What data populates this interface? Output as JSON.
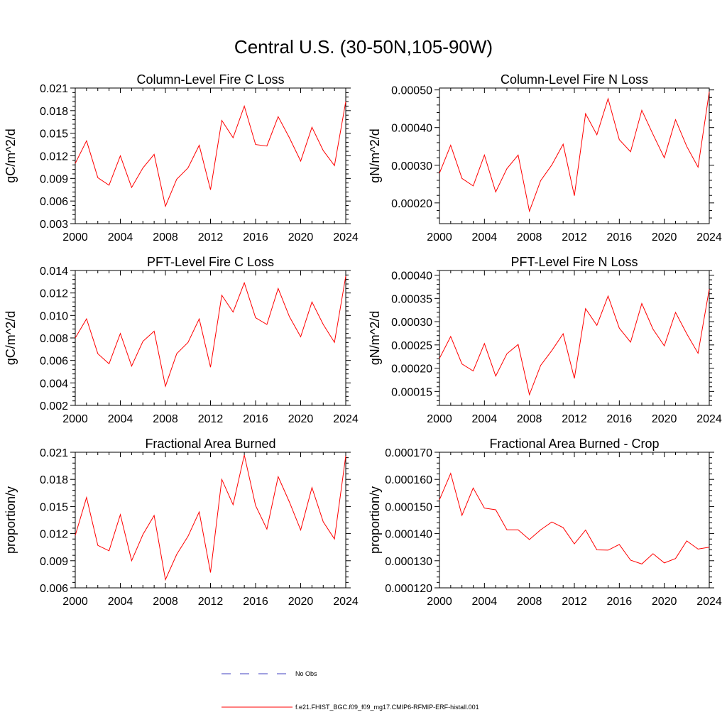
{
  "title": "Central U.S. (30-50N,105-90W)",
  "colors": {
    "model": "#ff0000",
    "obs": "#4040c0",
    "axis": "#000000",
    "background": "#ffffff"
  },
  "legend": {
    "placement": "bottom-center",
    "entries": [
      {
        "label": "No Obs",
        "style": "dashed",
        "color": "#4040c0"
      },
      {
        "label": "f.e21.FHIST_BGC.f09_f09_mg17.CMIP6-RFMIP-ERF-histall.001",
        "style": "solid",
        "color": "#ff0000"
      }
    ]
  },
  "chart_data": [
    {
      "type": "line",
      "title": "Column-Level Fire C Loss",
      "xlabel": "",
      "ylabel": "gC/m^2/d",
      "xlim": [
        2000,
        2024
      ],
      "ylim": [
        0.003,
        0.021
      ],
      "xticks": [
        2000,
        2004,
        2008,
        2012,
        2016,
        2020,
        2024
      ],
      "xtick_labels": [
        "2000",
        "2004",
        "2008",
        "2012",
        "2016",
        "2020",
        "2024"
      ],
      "yticks": [
        0.003,
        0.006,
        0.009,
        0.012,
        0.015,
        0.018,
        0.021
      ],
      "ytick_labels": [
        "0.003",
        "0.006",
        "0.009",
        "0.012",
        "0.015",
        "0.018",
        "0.021"
      ],
      "x": [
        2000,
        2001,
        2002,
        2003,
        2004,
        2005,
        2006,
        2007,
        2008,
        2009,
        2010,
        2011,
        2012,
        2013,
        2014,
        2015,
        2016,
        2017,
        2018,
        2019,
        2020,
        2021,
        2022,
        2023,
        2024
      ],
      "series": [
        {
          "name": "f.e21.FHIST_BGC.f09_f09_mg17.CMIP6-RFMIP-ERF-histall.001",
          "values": [
            0.011,
            0.014,
            0.0091,
            0.0081,
            0.012,
            0.0078,
            0.0104,
            0.0122,
            0.0053,
            0.0089,
            0.0104,
            0.0134,
            0.0075,
            0.0167,
            0.0144,
            0.0186,
            0.0135,
            0.0133,
            0.0172,
            0.0144,
            0.0113,
            0.0158,
            0.0127,
            0.0107,
            0.0192
          ]
        }
      ]
    },
    {
      "type": "line",
      "title": "Column-Level Fire N Loss",
      "xlabel": "",
      "ylabel": "gN/m^2/d",
      "xlim": [
        2000,
        2024
      ],
      "ylim": [
        0.000145,
        0.000505
      ],
      "xticks": [
        2000,
        2004,
        2008,
        2012,
        2016,
        2020,
        2024
      ],
      "xtick_labels": [
        "2000",
        "2004",
        "2008",
        "2012",
        "2016",
        "2020",
        "2024"
      ],
      "yticks": [
        0.0002,
        0.0003,
        0.0004,
        0.0005
      ],
      "ytick_labels": [
        "0.00020",
        "0.00030",
        "0.00040",
        "0.00050"
      ],
      "x": [
        2000,
        2001,
        2002,
        2003,
        2004,
        2005,
        2006,
        2007,
        2008,
        2009,
        2010,
        2011,
        2012,
        2013,
        2014,
        2015,
        2016,
        2017,
        2018,
        2019,
        2020,
        2021,
        2022,
        2023,
        2024
      ],
      "series": [
        {
          "name": "f.e21.FHIST_BGC.f09_f09_mg17.CMIP6-RFMIP-ERF-histall.001",
          "values": [
            0.000279,
            0.000353,
            0.000265,
            0.000245,
            0.000327,
            0.000229,
            0.000291,
            0.000327,
            0.000178,
            0.000259,
            0.000301,
            0.000356,
            0.000219,
            0.000437,
            0.000381,
            0.000477,
            0.000368,
            0.000336,
            0.000446,
            0.000382,
            0.00032,
            0.000421,
            0.00035,
            0.000295,
            0.000495
          ]
        }
      ]
    },
    {
      "type": "line",
      "title": "PFT-Level Fire C Loss",
      "xlabel": "",
      "ylabel": "gC/m^2/d",
      "xlim": [
        2000,
        2024
      ],
      "ylim": [
        0.002,
        0.014
      ],
      "xticks": [
        2000,
        2004,
        2008,
        2012,
        2016,
        2020,
        2024
      ],
      "xtick_labels": [
        "2000",
        "2004",
        "2008",
        "2012",
        "2016",
        "2020",
        "2024"
      ],
      "yticks": [
        0.002,
        0.004,
        0.006,
        0.008,
        0.01,
        0.012,
        0.014
      ],
      "ytick_labels": [
        "0.002",
        "0.004",
        "0.006",
        "0.008",
        "0.010",
        "0.012",
        "0.014"
      ],
      "x": [
        2000,
        2001,
        2002,
        2003,
        2004,
        2005,
        2006,
        2007,
        2008,
        2009,
        2010,
        2011,
        2012,
        2013,
        2014,
        2015,
        2016,
        2017,
        2018,
        2019,
        2020,
        2021,
        2022,
        2023,
        2024
      ],
      "series": [
        {
          "name": "f.e21.FHIST_BGC.f09_f09_mg17.CMIP6-RFMIP-ERF-histall.001",
          "values": [
            0.008,
            0.0097,
            0.0066,
            0.0057,
            0.0084,
            0.0055,
            0.0077,
            0.0086,
            0.0037,
            0.0066,
            0.0076,
            0.0097,
            0.0054,
            0.0118,
            0.0103,
            0.0129,
            0.0098,
            0.0092,
            0.0124,
            0.0099,
            0.0081,
            0.0112,
            0.0092,
            0.0076,
            0.0135
          ]
        }
      ]
    },
    {
      "type": "line",
      "title": "PFT-Level Fire N Loss",
      "xlabel": "",
      "ylabel": "gN/m^2/d",
      "xlim": [
        2000,
        2024
      ],
      "ylim": [
        0.00012,
        0.00041
      ],
      "xticks": [
        2000,
        2004,
        2008,
        2012,
        2016,
        2020,
        2024
      ],
      "xtick_labels": [
        "2000",
        "2004",
        "2008",
        "2012",
        "2016",
        "2020",
        "2024"
      ],
      "yticks": [
        0.00015,
        0.0002,
        0.00025,
        0.0003,
        0.00035,
        0.0004
      ],
      "ytick_labels": [
        "0.00015",
        "0.00020",
        "0.00025",
        "0.00030",
        "0.00035",
        "0.00040"
      ],
      "x": [
        2000,
        2001,
        2002,
        2003,
        2004,
        2005,
        2006,
        2007,
        2008,
        2009,
        2010,
        2011,
        2012,
        2013,
        2014,
        2015,
        2016,
        2017,
        2018,
        2019,
        2020,
        2021,
        2022,
        2023,
        2024
      ],
      "series": [
        {
          "name": "f.e21.FHIST_BGC.f09_f09_mg17.CMIP6-RFMIP-ERF-histall.001",
          "values": [
            0.000221,
            0.000268,
            0.000209,
            0.000194,
            0.000253,
            0.000183,
            0.000231,
            0.000251,
            0.000143,
            0.000206,
            0.000238,
            0.000274,
            0.000178,
            0.000328,
            0.000292,
            0.000355,
            0.000286,
            0.000256,
            0.000339,
            0.000284,
            0.000248,
            0.00032,
            0.000274,
            0.000232,
            0.00037
          ]
        }
      ]
    },
    {
      "type": "line",
      "title": "Fractional Area Burned",
      "xlabel": "",
      "ylabel": "proportion/y",
      "xlim": [
        2000,
        2024
      ],
      "ylim": [
        0.006,
        0.021
      ],
      "xticks": [
        2000,
        2004,
        2008,
        2012,
        2016,
        2020,
        2024
      ],
      "xtick_labels": [
        "2000",
        "2004",
        "2008",
        "2012",
        "2016",
        "2020",
        "2024"
      ],
      "yticks": [
        0.006,
        0.009,
        0.012,
        0.015,
        0.018,
        0.021
      ],
      "ytick_labels": [
        "0.006",
        "0.009",
        "0.012",
        "0.015",
        "0.018",
        "0.021"
      ],
      "x": [
        2000,
        2001,
        2002,
        2003,
        2004,
        2005,
        2006,
        2007,
        2008,
        2009,
        2010,
        2011,
        2012,
        2013,
        2014,
        2015,
        2016,
        2017,
        2018,
        2019,
        2020,
        2021,
        2022,
        2023,
        2024
      ],
      "series": [
        {
          "name": "f.e21.FHIST_BGC.f09_f09_mg17.CMIP6-RFMIP-ERF-histall.001",
          "values": [
            0.0118,
            0.016,
            0.0107,
            0.0101,
            0.0141,
            0.009,
            0.0119,
            0.014,
            0.0069,
            0.0097,
            0.0117,
            0.0144,
            0.0077,
            0.018,
            0.0152,
            0.0207,
            0.0151,
            0.0125,
            0.0183,
            0.0155,
            0.0124,
            0.0171,
            0.0133,
            0.0114,
            0.0206
          ]
        }
      ]
    },
    {
      "type": "line",
      "title": "Fractional Area Burned - Crop",
      "xlabel": "",
      "ylabel": "proportion/y",
      "xlim": [
        2000,
        2024
      ],
      "ylim": [
        0.00012,
        0.00017
      ],
      "xticks": [
        2000,
        2004,
        2008,
        2012,
        2016,
        2020,
        2024
      ],
      "xtick_labels": [
        "2000",
        "2004",
        "2008",
        "2012",
        "2016",
        "2020",
        "2024"
      ],
      "yticks": [
        0.00012,
        0.00013,
        0.00014,
        0.00015,
        0.00016,
        0.00017
      ],
      "ytick_labels": [
        "0.000120",
        "0.000130",
        "0.000140",
        "0.000150",
        "0.000160",
        "0.000170"
      ],
      "x": [
        2000,
        2001,
        2002,
        2003,
        2004,
        2005,
        2006,
        2007,
        2008,
        2009,
        2010,
        2011,
        2012,
        2013,
        2014,
        2015,
        2016,
        2017,
        2018,
        2019,
        2020,
        2021,
        2022,
        2023,
        2024
      ],
      "series": [
        {
          "name": "f.e21.FHIST_BGC.f09_f09_mg17.CMIP6-RFMIP-ERF-histall.001",
          "values": [
            0.0001525,
            0.0001622,
            0.0001467,
            0.0001568,
            0.0001494,
            0.0001488,
            0.0001414,
            0.0001414,
            0.0001378,
            0.0001414,
            0.0001443,
            0.0001422,
            0.0001362,
            0.0001413,
            0.000134,
            0.0001339,
            0.000136,
            0.0001302,
            0.0001288,
            0.0001326,
            0.0001292,
            0.0001308,
            0.0001373,
            0.0001343,
            0.000135
          ]
        }
      ]
    }
  ]
}
